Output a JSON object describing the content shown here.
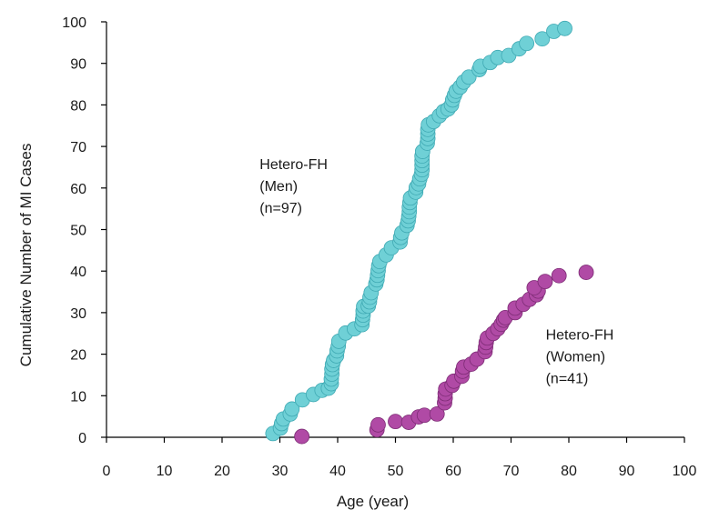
{
  "chart_data": {
    "type": "scatter",
    "xlabel": "Age (year)",
    "ylabel": "Cumulative Number of MI Cases",
    "xlim": [
      0,
      100
    ],
    "ylim": [
      0,
      100
    ],
    "xticks": [
      "0",
      "10",
      "20",
      "30",
      "40",
      "50",
      "60",
      "70",
      "80",
      "90",
      "100"
    ],
    "yticks": [
      "0",
      "10",
      "20",
      "30",
      "40",
      "50",
      "60",
      "70",
      "80",
      "90",
      "100"
    ],
    "grid": false,
    "annotations": [
      {
        "lines": [
          "Hetero-FH",
          "(Men)",
          "(n=97)"
        ],
        "x": 26.5,
        "y": 64.5
      },
      {
        "lines": [
          "Hetero-FH",
          "(Women)",
          "(n=41)"
        ],
        "x": 76,
        "y": 23.5
      }
    ],
    "series": [
      {
        "color": "#6fd0d6",
        "edge": "#3fa9b3",
        "points": [
          [
            28.8,
            0.9
          ],
          [
            30.1,
            2.2
          ],
          [
            30.3,
            3.3
          ],
          [
            30.6,
            4.4
          ],
          [
            31.8,
            5.6
          ],
          [
            32.1,
            6.8
          ],
          [
            33.9,
            9.0
          ],
          [
            35.8,
            10.3
          ],
          [
            37.3,
            11.3
          ],
          [
            38.4,
            11.8
          ],
          [
            38.9,
            12.9
          ],
          [
            38.9,
            14.0
          ],
          [
            39.0,
            15.2
          ],
          [
            39.0,
            16.4
          ],
          [
            39.1,
            17.5
          ],
          [
            39.3,
            18.5
          ],
          [
            39.8,
            19.6
          ],
          [
            39.9,
            20.8
          ],
          [
            40.1,
            21.9
          ],
          [
            40.2,
            23.1
          ],
          [
            41.4,
            25.1
          ],
          [
            42.9,
            26.1
          ],
          [
            44.2,
            27.1
          ],
          [
            44.3,
            28.3
          ],
          [
            44.4,
            29.4
          ],
          [
            44.4,
            30.4
          ],
          [
            44.5,
            31.5
          ],
          [
            45.3,
            31.6
          ],
          [
            45.5,
            32.6
          ],
          [
            45.6,
            33.7
          ],
          [
            45.8,
            34.8
          ],
          [
            46.6,
            36.9
          ],
          [
            46.8,
            37.9
          ],
          [
            46.9,
            39.0
          ],
          [
            47.0,
            40.1
          ],
          [
            47.1,
            41.3
          ],
          [
            47.3,
            42.3
          ],
          [
            48.4,
            43.9
          ],
          [
            49.3,
            45.6
          ],
          [
            50.8,
            47.0
          ],
          [
            50.9,
            48.1
          ],
          [
            51.1,
            49.2
          ],
          [
            52.0,
            51.0
          ],
          [
            52.2,
            52.1
          ],
          [
            52.3,
            53.2
          ],
          [
            52.4,
            54.3
          ],
          [
            52.4,
            55.4
          ],
          [
            52.5,
            56.5
          ],
          [
            52.6,
            57.6
          ],
          [
            53.5,
            59.0
          ],
          [
            53.6,
            60.1
          ],
          [
            54.0,
            61.0
          ],
          [
            54.2,
            62.2
          ],
          [
            54.5,
            63.3
          ],
          [
            54.6,
            64.4
          ],
          [
            54.6,
            65.5
          ],
          [
            54.6,
            66.6
          ],
          [
            54.6,
            67.7
          ],
          [
            54.7,
            68.8
          ],
          [
            55.5,
            70.8
          ],
          [
            55.6,
            71.9
          ],
          [
            55.6,
            73.0
          ],
          [
            55.6,
            74.1
          ],
          [
            55.7,
            75.2
          ],
          [
            56.6,
            76.0
          ],
          [
            57.6,
            77.4
          ],
          [
            58.3,
            78.4
          ],
          [
            59.1,
            79.0
          ],
          [
            59.7,
            80.0
          ],
          [
            59.9,
            81.2
          ],
          [
            60.2,
            82.3
          ],
          [
            60.5,
            83.3
          ],
          [
            61.2,
            84.3
          ],
          [
            61.8,
            85.5
          ],
          [
            62.7,
            86.7
          ],
          [
            64.5,
            88.5
          ],
          [
            64.7,
            89.3
          ],
          [
            66.4,
            90.2
          ],
          [
            67.7,
            91.4
          ],
          [
            69.6,
            91.9
          ],
          [
            71.4,
            93.5
          ],
          [
            72.7,
            94.8
          ],
          [
            75.4,
            95.9
          ],
          [
            77.4,
            97.7
          ],
          [
            79.3,
            98.4
          ]
        ]
      },
      {
        "color": "#b04aa5",
        "edge": "#7d2c75",
        "points": [
          [
            33.8,
            0.2
          ],
          [
            46.8,
            1.8
          ],
          [
            47.0,
            3.0
          ],
          [
            50.0,
            3.8
          ],
          [
            52.3,
            3.6
          ],
          [
            54.0,
            4.9
          ],
          [
            55.0,
            5.3
          ],
          [
            57.2,
            5.6
          ],
          [
            58.5,
            8.3
          ],
          [
            58.6,
            9.4
          ],
          [
            58.6,
            10.5
          ],
          [
            58.7,
            11.6
          ],
          [
            59.8,
            12.5
          ],
          [
            60.1,
            13.5
          ],
          [
            61.5,
            14.7
          ],
          [
            61.6,
            15.9
          ],
          [
            61.8,
            16.9
          ],
          [
            63.1,
            17.6
          ],
          [
            64.1,
            18.8
          ],
          [
            65.5,
            20.6
          ],
          [
            65.6,
            21.7
          ],
          [
            65.7,
            22.8
          ],
          [
            65.9,
            23.9
          ],
          [
            66.9,
            25.0
          ],
          [
            67.7,
            26.1
          ],
          [
            68.3,
            27.2
          ],
          [
            68.7,
            28.2
          ],
          [
            69.0,
            28.8
          ],
          [
            70.7,
            30.0
          ],
          [
            70.7,
            31.1
          ],
          [
            72.1,
            32.0
          ],
          [
            73.2,
            33.2
          ],
          [
            74.4,
            34.3
          ],
          [
            74.7,
            35.2
          ],
          [
            74.0,
            36.0
          ],
          [
            75.9,
            37.5
          ],
          [
            78.3,
            38.9
          ],
          [
            83.0,
            39.7
          ]
        ]
      }
    ]
  }
}
